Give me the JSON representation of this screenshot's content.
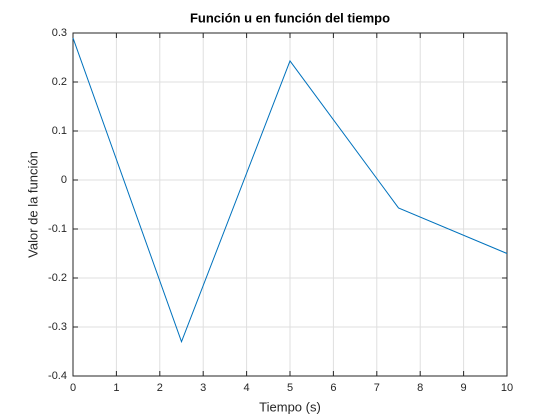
{
  "chart_data": {
    "type": "line",
    "title": "Función u en función del tiempo",
    "xlabel": "Tiempo (s)",
    "ylabel": "Valor de la función",
    "x": [
      0,
      2.5,
      5,
      7.5,
      10
    ],
    "series": [
      {
        "name": "u",
        "color": "#0072bd",
        "values": [
          0.29,
          -0.33,
          0.243,
          -0.057,
          -0.15
        ]
      }
    ],
    "xlim": [
      0,
      10
    ],
    "xticks": [
      0,
      1,
      2,
      3,
      4,
      5,
      6,
      7,
      8,
      9,
      10
    ],
    "ylim": [
      -0.4,
      0.3
    ],
    "yticks": [
      -0.4,
      -0.3,
      -0.2,
      -0.1,
      0,
      0.1,
      0.2,
      0.3
    ],
    "grid": true
  }
}
